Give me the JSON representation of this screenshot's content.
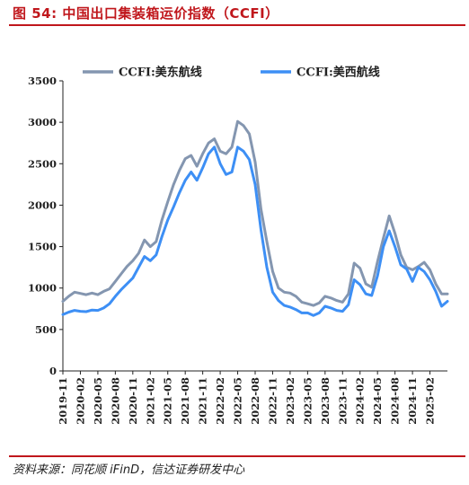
{
  "figure": {
    "title": "图 54:  中国出口集装箱运价指数（CCFI）",
    "source": "资料来源：同花顺 iFinD，信达证券研发中心"
  },
  "chart_data": {
    "type": "line",
    "ylim": [
      0,
      3500
    ],
    "yticks": [
      0,
      500,
      1000,
      1500,
      2000,
      2500,
      3000,
      3500
    ],
    "xlim": [
      "2019-11",
      "2025-05"
    ],
    "xticks": [
      "2019-11",
      "2020-02",
      "2020-05",
      "2020-08",
      "2020-11",
      "2021-02",
      "2021-05",
      "2021-08",
      "2021-11",
      "2022-02",
      "2022-05",
      "2022-08",
      "2022-11",
      "2023-02",
      "2023-05",
      "2023-08",
      "2023-11",
      "2024-02",
      "2024-05",
      "2024-08",
      "2024-11",
      "2025-02"
    ],
    "grid": false,
    "legend_position": "top",
    "series": [
      {
        "name": "CCFI:美东航线",
        "color": "#8496b0",
        "points": [
          [
            "2019-11",
            840
          ],
          [
            "2019-12",
            900
          ],
          [
            "2020-01",
            950
          ],
          [
            "2020-02",
            935
          ],
          [
            "2020-03",
            920
          ],
          [
            "2020-04",
            940
          ],
          [
            "2020-05",
            920
          ],
          [
            "2020-06",
            960
          ],
          [
            "2020-07",
            990
          ],
          [
            "2020-08",
            1080
          ],
          [
            "2020-09",
            1170
          ],
          [
            "2020-10",
            1260
          ],
          [
            "2020-11",
            1330
          ],
          [
            "2020-12",
            1420
          ],
          [
            "2021-01",
            1580
          ],
          [
            "2021-02",
            1500
          ],
          [
            "2021-03",
            1560
          ],
          [
            "2021-04",
            1820
          ],
          [
            "2021-05",
            2040
          ],
          [
            "2021-06",
            2250
          ],
          [
            "2021-07",
            2420
          ],
          [
            "2021-08",
            2560
          ],
          [
            "2021-09",
            2600
          ],
          [
            "2021-10",
            2470
          ],
          [
            "2021-11",
            2620
          ],
          [
            "2021-12",
            2750
          ],
          [
            "2022-01",
            2800
          ],
          [
            "2022-02",
            2650
          ],
          [
            "2022-03",
            2620
          ],
          [
            "2022-04",
            2700
          ],
          [
            "2022-05",
            3010
          ],
          [
            "2022-06",
            2960
          ],
          [
            "2022-07",
            2860
          ],
          [
            "2022-08",
            2520
          ],
          [
            "2022-09",
            1950
          ],
          [
            "2022-10",
            1560
          ],
          [
            "2022-11",
            1200
          ],
          [
            "2022-12",
            1000
          ],
          [
            "2023-01",
            950
          ],
          [
            "2023-02",
            940
          ],
          [
            "2023-03",
            900
          ],
          [
            "2023-04",
            830
          ],
          [
            "2023-05",
            810
          ],
          [
            "2023-06",
            790
          ],
          [
            "2023-07",
            820
          ],
          [
            "2023-08",
            900
          ],
          [
            "2023-09",
            880
          ],
          [
            "2023-10",
            850
          ],
          [
            "2023-11",
            830
          ],
          [
            "2023-12",
            930
          ],
          [
            "2024-01",
            1300
          ],
          [
            "2024-02",
            1240
          ],
          [
            "2024-03",
            1050
          ],
          [
            "2024-04",
            1010
          ],
          [
            "2024-05",
            1320
          ],
          [
            "2024-06",
            1600
          ],
          [
            "2024-07",
            1870
          ],
          [
            "2024-08",
            1660
          ],
          [
            "2024-09",
            1400
          ],
          [
            "2024-10",
            1250
          ],
          [
            "2024-11",
            1220
          ],
          [
            "2024-12",
            1260
          ],
          [
            "2025-01",
            1310
          ],
          [
            "2025-02",
            1220
          ],
          [
            "2025-03",
            1050
          ],
          [
            "2025-04",
            930
          ],
          [
            "2025-05",
            930
          ]
        ]
      },
      {
        "name": "CCFI:美西航线",
        "color": "#3d8ff5",
        "points": [
          [
            "2019-11",
            680
          ],
          [
            "2019-12",
            710
          ],
          [
            "2020-01",
            730
          ],
          [
            "2020-02",
            720
          ],
          [
            "2020-03",
            715
          ],
          [
            "2020-04",
            735
          ],
          [
            "2020-05",
            730
          ],
          [
            "2020-06",
            760
          ],
          [
            "2020-07",
            810
          ],
          [
            "2020-08",
            900
          ],
          [
            "2020-09",
            980
          ],
          [
            "2020-10",
            1050
          ],
          [
            "2020-11",
            1120
          ],
          [
            "2020-12",
            1250
          ],
          [
            "2021-01",
            1380
          ],
          [
            "2021-02",
            1330
          ],
          [
            "2021-03",
            1400
          ],
          [
            "2021-04",
            1620
          ],
          [
            "2021-05",
            1820
          ],
          [
            "2021-06",
            1980
          ],
          [
            "2021-07",
            2150
          ],
          [
            "2021-08",
            2300
          ],
          [
            "2021-09",
            2400
          ],
          [
            "2021-10",
            2300
          ],
          [
            "2021-11",
            2450
          ],
          [
            "2021-12",
            2620
          ],
          [
            "2022-01",
            2700
          ],
          [
            "2022-02",
            2500
          ],
          [
            "2022-03",
            2370
          ],
          [
            "2022-04",
            2400
          ],
          [
            "2022-05",
            2700
          ],
          [
            "2022-06",
            2650
          ],
          [
            "2022-07",
            2550
          ],
          [
            "2022-08",
            2250
          ],
          [
            "2022-09",
            1700
          ],
          [
            "2022-10",
            1250
          ],
          [
            "2022-11",
            950
          ],
          [
            "2022-12",
            850
          ],
          [
            "2023-01",
            790
          ],
          [
            "2023-02",
            770
          ],
          [
            "2023-03",
            740
          ],
          [
            "2023-04",
            700
          ],
          [
            "2023-05",
            700
          ],
          [
            "2023-06",
            670
          ],
          [
            "2023-07",
            700
          ],
          [
            "2023-08",
            780
          ],
          [
            "2023-09",
            760
          ],
          [
            "2023-10",
            730
          ],
          [
            "2023-11",
            720
          ],
          [
            "2023-12",
            800
          ],
          [
            "2024-01",
            1100
          ],
          [
            "2024-02",
            1040
          ],
          [
            "2024-03",
            930
          ],
          [
            "2024-04",
            910
          ],
          [
            "2024-05",
            1150
          ],
          [
            "2024-06",
            1500
          ],
          [
            "2024-07",
            1690
          ],
          [
            "2024-08",
            1500
          ],
          [
            "2024-09",
            1280
          ],
          [
            "2024-10",
            1230
          ],
          [
            "2024-11",
            1080
          ],
          [
            "2024-12",
            1250
          ],
          [
            "2025-01",
            1200
          ],
          [
            "2025-02",
            1100
          ],
          [
            "2025-03",
            960
          ],
          [
            "2025-04",
            780
          ],
          [
            "2025-05",
            840
          ]
        ]
      }
    ]
  }
}
